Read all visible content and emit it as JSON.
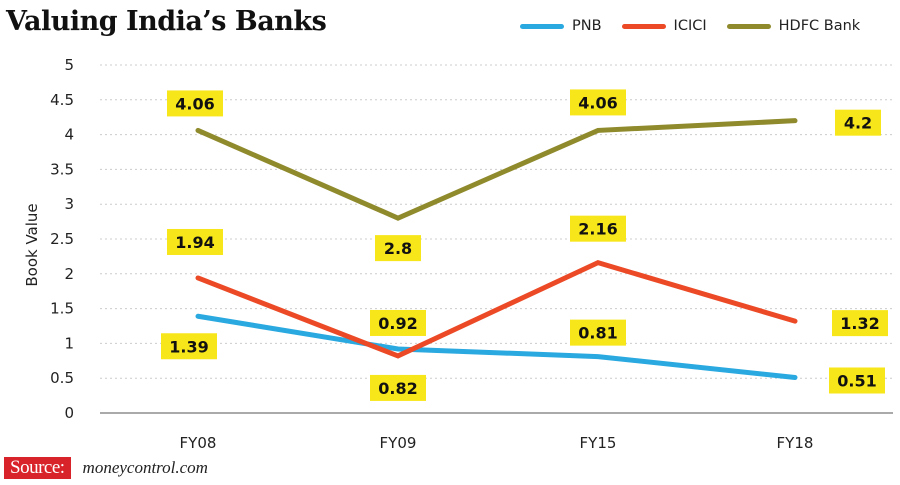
{
  "title": "Valuing India’s Banks",
  "legend": [
    {
      "label": "PNB",
      "color": "#29a9e0"
    },
    {
      "label": "ICICI",
      "color": "#ec4a26"
    },
    {
      "label": "HDFC Bank",
      "color": "#8f8a2c"
    }
  ],
  "source": {
    "label": "Source:",
    "site": "moneycontrol.com"
  },
  "label_box_color": "#f7e61a",
  "chart_data": {
    "type": "line",
    "title": "Valuing India’s Banks",
    "xlabel": "",
    "ylabel": "Book Value",
    "ylim": [
      0,
      5
    ],
    "yticks": [
      "0",
      "0.5",
      "1",
      "1.5",
      "2",
      "2.5",
      "3",
      "3.5",
      "4",
      "4.5",
      "5"
    ],
    "grid": true,
    "legend_position": "top-right",
    "categories": [
      "FY08",
      "FY09",
      "FY15",
      "FY18"
    ],
    "series": [
      {
        "name": "PNB",
        "color": "#29a9e0",
        "values": [
          1.39,
          0.92,
          0.81,
          0.51
        ],
        "labels": [
          "1.39",
          "0.92",
          "0.81",
          "0.51"
        ]
      },
      {
        "name": "ICICI",
        "color": "#ec4a26",
        "values": [
          1.94,
          0.82,
          2.16,
          1.32
        ],
        "labels": [
          "1.94",
          "0.82",
          "2.16",
          "1.32"
        ]
      },
      {
        "name": "HDFC Bank",
        "color": "#8f8a2c",
        "values": [
          4.06,
          2.8,
          4.06,
          4.2
        ],
        "labels": [
          "4.06",
          "2.8",
          "4.06",
          "4.2"
        ]
      }
    ]
  }
}
